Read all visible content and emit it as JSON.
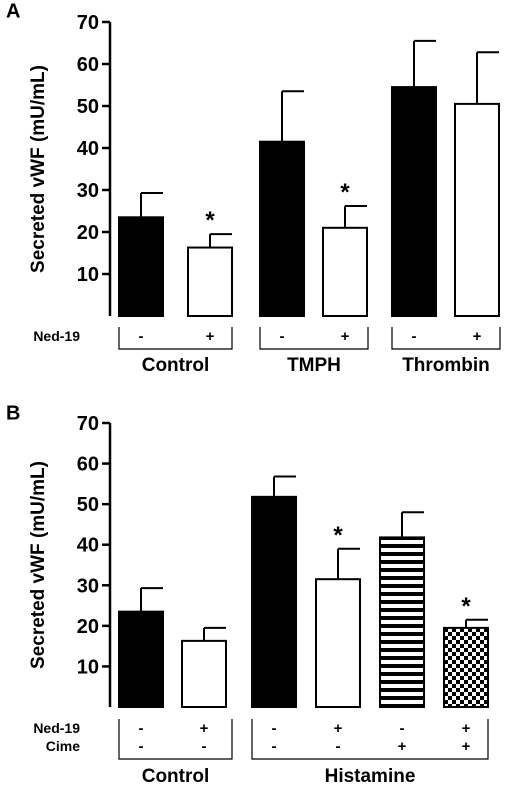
{
  "panels": [
    {
      "letter": "A",
      "ylabel": "Secreted vWF (mU/mL)",
      "ylim": [
        0,
        70
      ],
      "yticks": [
        10,
        20,
        30,
        40,
        50,
        60,
        70
      ],
      "factors": [
        {
          "label": "Ned-19",
          "values": [
            "-",
            "+",
            "-",
            "+",
            "-",
            "+"
          ]
        }
      ],
      "groups": [
        {
          "label": "Control",
          "bars": [
            0,
            1
          ]
        },
        {
          "label": "TMPH",
          "bars": [
            2,
            3
          ]
        },
        {
          "label": "Thrombin",
          "bars": [
            4,
            5
          ]
        }
      ]
    },
    {
      "letter": "B",
      "ylabel": "Secreted vWF (mU/mL)",
      "ylim": [
        0,
        70
      ],
      "yticks": [
        10,
        20,
        30,
        40,
        50,
        60,
        70
      ],
      "factors": [
        {
          "label": "Ned-19",
          "values": [
            "-",
            "+",
            "-",
            "+",
            "-",
            "+"
          ]
        },
        {
          "label": "Cime",
          "values": [
            "-",
            "-",
            "-",
            "-",
            "+",
            "+"
          ]
        }
      ],
      "groups": [
        {
          "label": "Control",
          "bars": [
            0,
            1
          ]
        },
        {
          "label": "Histamine",
          "bars": [
            2,
            5
          ]
        }
      ]
    }
  ],
  "chart_data": [
    {
      "type": "bar",
      "panel": "A",
      "ylabel": "Secreted vWF (mU/mL)",
      "ylim": [
        0,
        70
      ],
      "categories": [
        "Control -",
        "Control +",
        "TMPH -",
        "TMPH +",
        "Thrombin -",
        "Thrombin +"
      ],
      "values": [
        23.5,
        16.3,
        41.5,
        21,
        54.5,
        50.5
      ],
      "errors": [
        5.8,
        3.2,
        12,
        5.2,
        11,
        12.3
      ],
      "fills": [
        "#000000",
        "#ffffff",
        "#000000",
        "#ffffff",
        "#000000",
        "#ffffff"
      ],
      "significance": [
        "",
        "*",
        "",
        "*",
        "",
        ""
      ],
      "grid": false
    },
    {
      "type": "bar",
      "panel": "B",
      "ylabel": "Secreted vWF (mU/mL)",
      "ylim": [
        0,
        70
      ],
      "categories": [
        "Control -/-",
        "Control +/-",
        "Histamine -/-",
        "Histamine +/-",
        "Histamine -/+",
        "Histamine +/+"
      ],
      "values": [
        23.5,
        16.3,
        51.8,
        31.5,
        41.8,
        19.5
      ],
      "errors": [
        5.8,
        3.2,
        5,
        7.5,
        6.2,
        2
      ],
      "fills": [
        "#000000",
        "#ffffff",
        "#000000",
        "#ffffff",
        "horizontal-stripes",
        "checkerboard"
      ],
      "significance": [
        "",
        "",
        "",
        "*",
        "",
        "*"
      ],
      "grid": false
    }
  ]
}
